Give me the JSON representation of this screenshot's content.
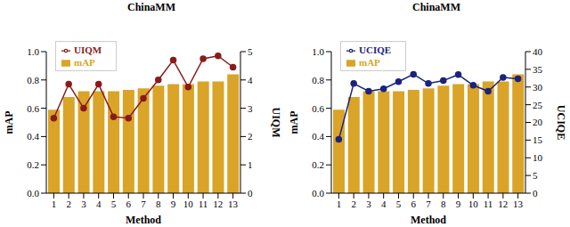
{
  "chart_data": [
    {
      "type": "bar",
      "title": "ChinaMM",
      "x_label": "Method",
      "y_label": "mAP",
      "y2_label": "UIQM",
      "categories": [
        "1",
        "2",
        "3",
        "4",
        "5",
        "6",
        "7",
        "8",
        "9",
        "10",
        "11",
        "12",
        "13"
      ],
      "series": [
        {
          "name": "mAP",
          "type": "bar",
          "color": "#d9a427",
          "values": [
            0.59,
            0.68,
            0.72,
            0.72,
            0.72,
            0.73,
            0.74,
            0.76,
            0.77,
            0.77,
            0.79,
            0.79,
            0.84
          ]
        },
        {
          "name": "UIQM",
          "type": "line",
          "axis": "y2",
          "marker": "circle",
          "color": "#8b1a1a",
          "values": [
            2.65,
            3.85,
            3.0,
            3.85,
            2.7,
            2.65,
            3.35,
            4.0,
            4.7,
            3.75,
            4.75,
            4.85,
            4.45
          ]
        }
      ],
      "ylim": [
        0,
        1
      ],
      "yticks": [
        {
          "value": 0,
          "label": "0.0"
        },
        {
          "value": 0.2,
          "label": "0.2"
        },
        {
          "value": 0.4,
          "label": "0.4"
        },
        {
          "value": 0.6,
          "label": "0.6"
        },
        {
          "value": 0.8,
          "label": "0.8"
        },
        {
          "value": 1,
          "label": "1.0"
        }
      ],
      "y2lim": [
        0,
        5
      ],
      "y2ticks": [
        0,
        1,
        2,
        3,
        4,
        5
      ],
      "legend": "upper left",
      "grid": false
    },
    {
      "type": "bar",
      "title": "ChinaMM",
      "x_label": "Method",
      "y_label": "mAP",
      "y2_label": "UCIQE",
      "categories": [
        "1",
        "2",
        "3",
        "4",
        "5",
        "6",
        "7",
        "8",
        "9",
        "10",
        "11",
        "12",
        "13"
      ],
      "series": [
        {
          "name": "mAP",
          "type": "bar",
          "color": "#d9a427",
          "values": [
            0.59,
            0.68,
            0.72,
            0.72,
            0.72,
            0.73,
            0.74,
            0.76,
            0.77,
            0.77,
            0.79,
            0.79,
            0.84
          ]
        },
        {
          "name": "UCIQE",
          "type": "line",
          "axis": "y2",
          "marker": "circle",
          "color": "#1a237e",
          "values": [
            15.2,
            31,
            28.8,
            29.5,
            31.5,
            33.6,
            31,
            31.8,
            33.5,
            30.5,
            28.8,
            32.7,
            32.3
          ]
        }
      ],
      "ylim": [
        0,
        1
      ],
      "yticks": [
        {
          "value": 0,
          "label": "0.0"
        },
        {
          "value": 0.2,
          "label": "0.2"
        },
        {
          "value": 0.4,
          "label": "0.4"
        },
        {
          "value": 0.6,
          "label": "0.6"
        },
        {
          "value": 0.8,
          "label": "0.8"
        },
        {
          "value": 1,
          "label": "1.0"
        }
      ],
      "y2lim": [
        0,
        40
      ],
      "y2ticks": [
        0,
        5,
        10,
        15,
        20,
        25,
        30,
        35,
        40
      ],
      "legend": "upper left",
      "grid": false
    }
  ]
}
